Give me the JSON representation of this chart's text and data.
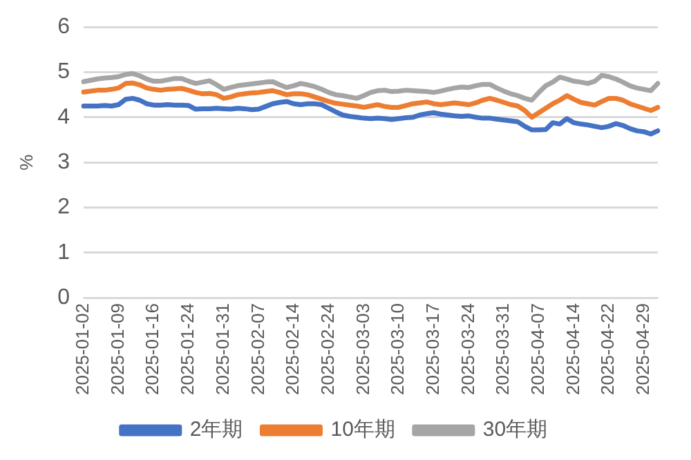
{
  "chart_data": {
    "type": "line",
    "ylabel": "%",
    "categories": [
      "2025-01-02",
      null,
      null,
      null,
      null,
      "2025-01-09",
      null,
      null,
      null,
      null,
      "2025-01-16",
      null,
      null,
      null,
      null,
      "2025-01-24",
      null,
      null,
      null,
      null,
      "2025-01-31",
      null,
      null,
      null,
      null,
      "2025-02-07",
      null,
      null,
      null,
      null,
      "2025-02-14",
      null,
      null,
      null,
      null,
      "2025-02-24",
      null,
      null,
      null,
      null,
      "2025-03-03",
      null,
      null,
      null,
      null,
      "2025-03-10",
      null,
      null,
      null,
      null,
      "2025-03-17",
      null,
      null,
      null,
      null,
      "2025-03-24",
      null,
      null,
      null,
      null,
      "2025-03-31",
      null,
      null,
      null,
      null,
      "2025-04-07",
      null,
      null,
      null,
      null,
      "2025-04-14",
      null,
      null,
      null,
      null,
      "2025-04-22",
      null,
      null,
      null,
      null,
      "2025-04-29",
      null,
      null
    ],
    "series": [
      {
        "name": "2年期",
        "color": "#4472c4",
        "values": [
          4.25,
          4.25,
          4.25,
          4.26,
          4.25,
          4.28,
          4.4,
          4.42,
          4.38,
          4.3,
          4.27,
          4.27,
          4.28,
          4.27,
          4.27,
          4.26,
          4.18,
          4.19,
          4.19,
          4.2,
          4.19,
          4.18,
          4.2,
          4.19,
          4.17,
          4.18,
          4.24,
          4.3,
          4.33,
          4.35,
          4.3,
          4.28,
          4.3,
          4.3,
          4.28,
          4.2,
          4.12,
          4.05,
          4.02,
          4.0,
          3.98,
          3.97,
          3.98,
          3.97,
          3.95,
          3.97,
          3.99,
          4.0,
          4.05,
          4.08,
          4.1,
          4.07,
          4.05,
          4.03,
          4.02,
          4.03,
          4.0,
          3.98,
          3.98,
          3.96,
          3.94,
          3.92,
          3.9,
          3.8,
          3.72,
          3.72,
          3.73,
          3.88,
          3.85,
          3.97,
          3.88,
          3.85,
          3.83,
          3.8,
          3.77,
          3.8,
          3.86,
          3.82,
          3.75,
          3.7,
          3.68,
          3.63,
          3.7
        ]
      },
      {
        "name": "10年期",
        "color": "#ed7d31",
        "values": [
          4.56,
          4.58,
          4.6,
          4.6,
          4.62,
          4.65,
          4.75,
          4.76,
          4.72,
          4.65,
          4.62,
          4.6,
          4.62,
          4.63,
          4.64,
          4.6,
          4.55,
          4.52,
          4.53,
          4.5,
          4.42,
          4.45,
          4.5,
          4.52,
          4.54,
          4.55,
          4.57,
          4.59,
          4.55,
          4.5,
          4.52,
          4.52,
          4.5,
          4.45,
          4.4,
          4.35,
          4.31,
          4.29,
          4.27,
          4.25,
          4.22,
          4.25,
          4.28,
          4.24,
          4.22,
          4.22,
          4.26,
          4.3,
          4.32,
          4.34,
          4.3,
          4.28,
          4.3,
          4.32,
          4.3,
          4.28,
          4.32,
          4.38,
          4.42,
          4.38,
          4.33,
          4.28,
          4.25,
          4.15,
          4.0,
          4.1,
          4.2,
          4.3,
          4.38,
          4.48,
          4.4,
          4.33,
          4.3,
          4.27,
          4.35,
          4.42,
          4.42,
          4.38,
          4.3,
          4.25,
          4.2,
          4.15,
          4.22
        ]
      },
      {
        "name": "30年期",
        "color": "#a5a5a5",
        "values": [
          4.79,
          4.82,
          4.85,
          4.87,
          4.88,
          4.9,
          4.95,
          4.97,
          4.92,
          4.85,
          4.8,
          4.8,
          4.83,
          4.86,
          4.86,
          4.8,
          4.75,
          4.78,
          4.81,
          4.72,
          4.62,
          4.66,
          4.7,
          4.72,
          4.74,
          4.76,
          4.78,
          4.79,
          4.72,
          4.66,
          4.7,
          4.75,
          4.72,
          4.68,
          4.62,
          4.55,
          4.5,
          4.48,
          4.45,
          4.42,
          4.48,
          4.55,
          4.59,
          4.6,
          4.57,
          4.58,
          4.6,
          4.59,
          4.58,
          4.57,
          4.55,
          4.58,
          4.62,
          4.65,
          4.67,
          4.66,
          4.7,
          4.73,
          4.73,
          4.65,
          4.58,
          4.52,
          4.48,
          4.42,
          4.38,
          4.55,
          4.7,
          4.78,
          4.89,
          4.85,
          4.8,
          4.78,
          4.75,
          4.8,
          4.93,
          4.9,
          4.85,
          4.78,
          4.7,
          4.65,
          4.62,
          4.59,
          4.75
        ]
      }
    ],
    "ylim": [
      0,
      6
    ],
    "yticks": [
      0,
      1,
      2,
      3,
      4,
      5,
      6
    ],
    "grid": "y",
    "legend": "bottom",
    "marker": "none",
    "line_style": "solid"
  }
}
